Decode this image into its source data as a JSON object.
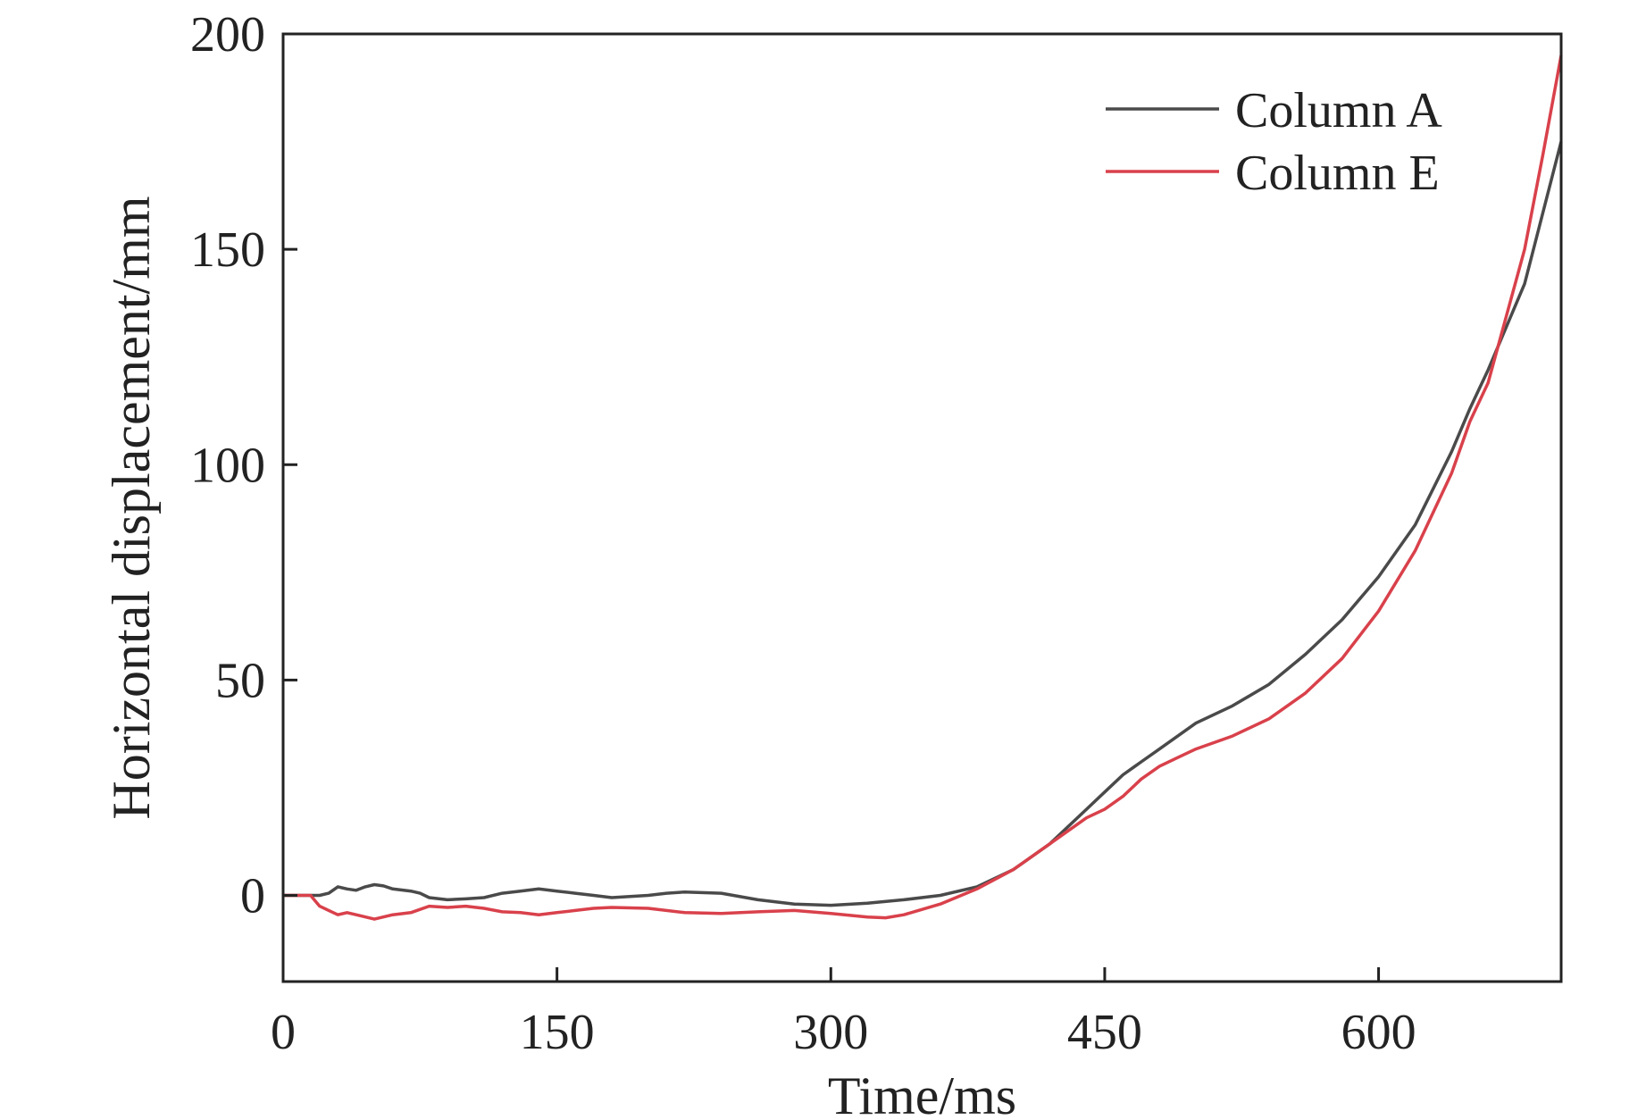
{
  "chart_data": {
    "type": "line",
    "xlabel": "Time/ms",
    "ylabel": "Horizontal displacement/mm",
    "xlim": [
      0,
      700
    ],
    "ylim": [
      -20,
      200
    ],
    "x_ticks": [
      0,
      150,
      300,
      450,
      600
    ],
    "y_ticks": [
      0,
      50,
      100,
      150,
      200
    ],
    "grid": false,
    "legend_position": "top-right",
    "series": [
      {
        "name": "Column A",
        "color": "#4a4a4a",
        "points": [
          [
            0,
            0
          ],
          [
            10,
            0
          ],
          [
            20,
            0
          ],
          [
            25,
            0.5
          ],
          [
            30,
            2
          ],
          [
            35,
            1.5
          ],
          [
            40,
            1.2
          ],
          [
            45,
            2
          ],
          [
            50,
            2.5
          ],
          [
            55,
            2.2
          ],
          [
            60,
            1.5
          ],
          [
            70,
            1
          ],
          [
            75,
            0.5
          ],
          [
            80,
            -0.5
          ],
          [
            90,
            -1
          ],
          [
            100,
            -0.8
          ],
          [
            110,
            -0.5
          ],
          [
            120,
            0.5
          ],
          [
            130,
            1
          ],
          [
            140,
            1.5
          ],
          [
            150,
            1
          ],
          [
            160,
            0.5
          ],
          [
            170,
            0
          ],
          [
            180,
            -0.5
          ],
          [
            200,
            0
          ],
          [
            210,
            0.5
          ],
          [
            220,
            0.8
          ],
          [
            240,
            0.5
          ],
          [
            260,
            -1
          ],
          [
            280,
            -2
          ],
          [
            300,
            -2.3
          ],
          [
            320,
            -1.8
          ],
          [
            340,
            -1
          ],
          [
            360,
            0
          ],
          [
            380,
            2
          ],
          [
            400,
            6
          ],
          [
            420,
            12
          ],
          [
            440,
            20
          ],
          [
            450,
            24
          ],
          [
            460,
            28
          ],
          [
            470,
            31
          ],
          [
            480,
            34
          ],
          [
            490,
            37
          ],
          [
            500,
            40
          ],
          [
            520,
            44
          ],
          [
            540,
            49
          ],
          [
            560,
            56
          ],
          [
            580,
            64
          ],
          [
            600,
            74
          ],
          [
            620,
            86
          ],
          [
            640,
            103
          ],
          [
            650,
            113
          ],
          [
            660,
            122
          ],
          [
            680,
            142
          ],
          [
            700,
            175
          ]
        ]
      },
      {
        "name": "Column E",
        "color": "#d9414b",
        "points": [
          [
            0,
            0
          ],
          [
            10,
            0
          ],
          [
            15,
            0
          ],
          [
            20,
            -2.5
          ],
          [
            25,
            -3.5
          ],
          [
            30,
            -4.5
          ],
          [
            35,
            -4
          ],
          [
            40,
            -4.5
          ],
          [
            50,
            -5.5
          ],
          [
            60,
            -4.5
          ],
          [
            70,
            -4
          ],
          [
            80,
            -2.5
          ],
          [
            90,
            -2.8
          ],
          [
            100,
            -2.5
          ],
          [
            110,
            -3
          ],
          [
            120,
            -3.8
          ],
          [
            130,
            -4
          ],
          [
            140,
            -4.5
          ],
          [
            150,
            -4
          ],
          [
            160,
            -3.5
          ],
          [
            170,
            -3
          ],
          [
            180,
            -2.8
          ],
          [
            200,
            -3
          ],
          [
            220,
            -4
          ],
          [
            240,
            -4.2
          ],
          [
            260,
            -3.8
          ],
          [
            280,
            -3.5
          ],
          [
            300,
            -4.2
          ],
          [
            320,
            -5
          ],
          [
            330,
            -5.2
          ],
          [
            340,
            -4.5
          ],
          [
            360,
            -2
          ],
          [
            380,
            1.5
          ],
          [
            400,
            6
          ],
          [
            420,
            12
          ],
          [
            440,
            18
          ],
          [
            450,
            20
          ],
          [
            460,
            23
          ],
          [
            470,
            27
          ],
          [
            480,
            30
          ],
          [
            490,
            32
          ],
          [
            500,
            34
          ],
          [
            520,
            37
          ],
          [
            540,
            41
          ],
          [
            560,
            47
          ],
          [
            580,
            55
          ],
          [
            600,
            66
          ],
          [
            620,
            80
          ],
          [
            640,
            98
          ],
          [
            650,
            110
          ],
          [
            660,
            119
          ],
          [
            680,
            150
          ],
          [
            690,
            172
          ],
          [
            700,
            195
          ]
        ]
      }
    ]
  }
}
